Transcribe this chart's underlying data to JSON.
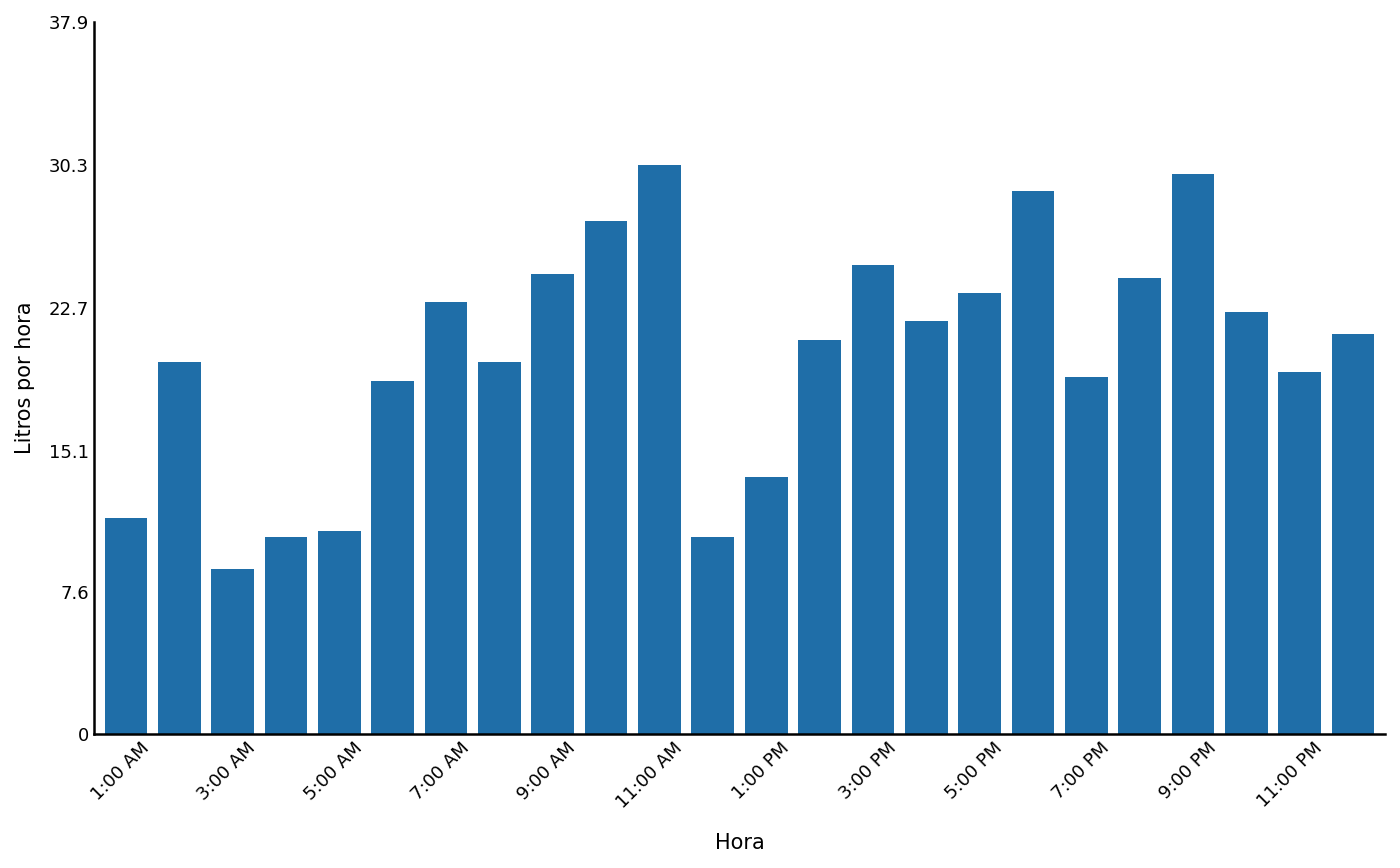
{
  "hours_labels": [
    "1:00 AM",
    "3:00 AM",
    "5:00 AM",
    "7:00 AM",
    "9:00 AM",
    "11:00 AM",
    "1:00 PM",
    "3:00 PM",
    "5:00 PM",
    "7:00 PM",
    "9:00 PM",
    "11:00 PM"
  ],
  "bar_values": [
    11.5,
    19.8,
    8.8,
    10.5,
    10.8,
    18.8,
    23.0,
    19.8,
    24.5,
    27.3,
    30.3,
    10.5,
    13.7,
    21.0,
    25.0,
    22.0,
    23.5,
    28.9,
    19.0,
    24.3,
    29.8,
    22.5,
    19.3,
    21.3
  ],
  "bar_color": "#1F6EA8",
  "ylabel": "Litros por hora",
  "xlabel": "Hora",
  "yticks": [
    0,
    7.6,
    15.1,
    22.7,
    30.3,
    37.9
  ],
  "ylim": [
    0,
    37.9
  ],
  "background_color": "#ffffff"
}
